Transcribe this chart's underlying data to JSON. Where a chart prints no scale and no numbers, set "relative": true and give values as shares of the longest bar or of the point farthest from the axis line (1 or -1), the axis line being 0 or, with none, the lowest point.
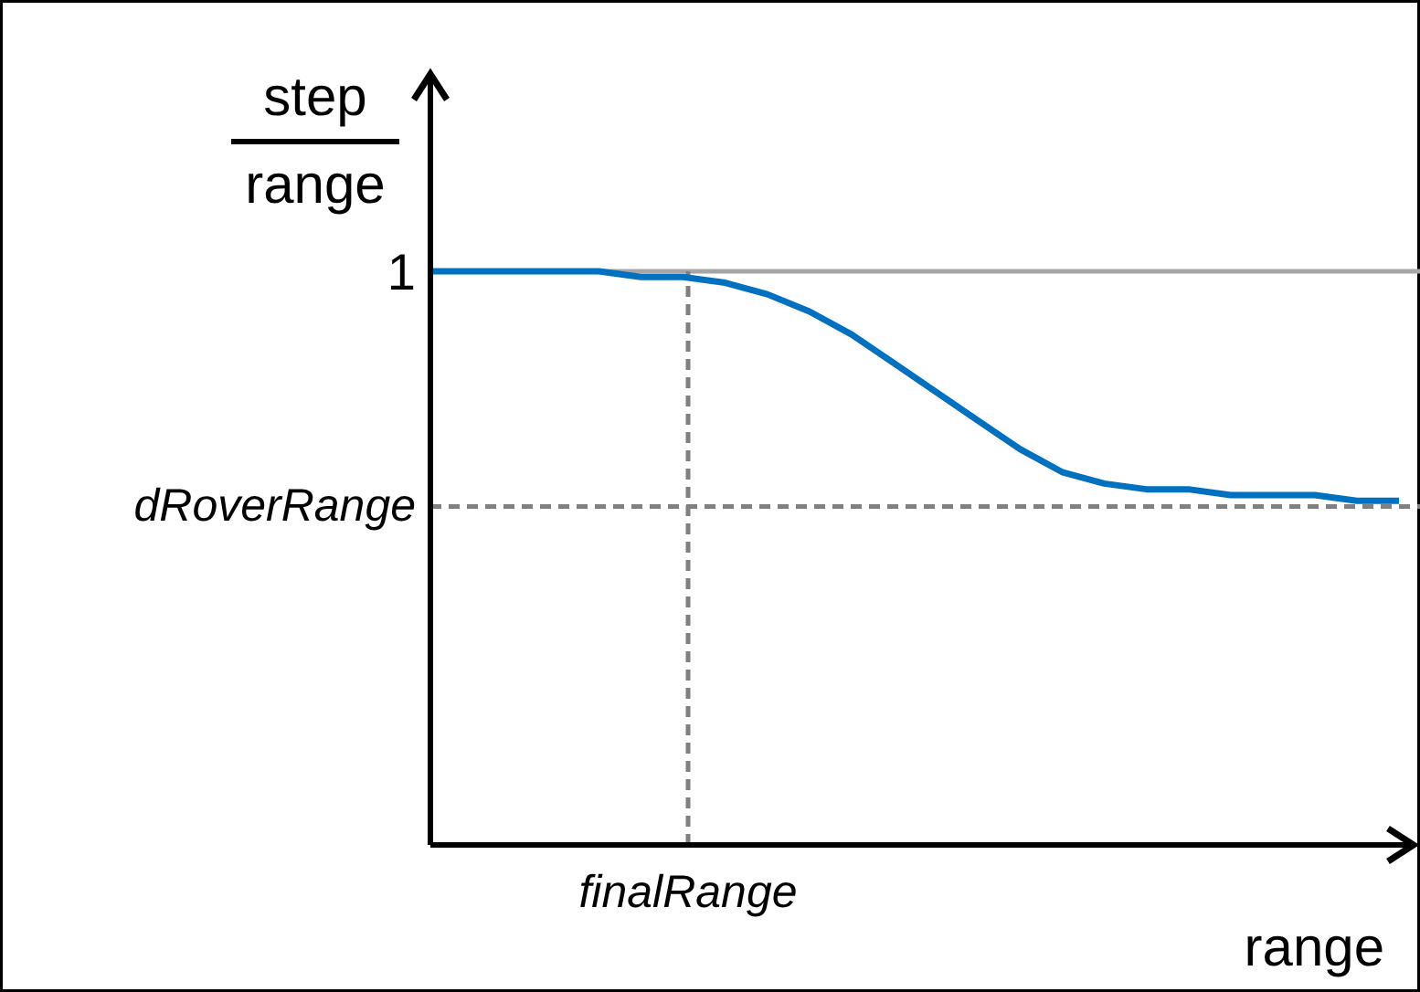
{
  "chart_data": {
    "type": "line",
    "relative": true,
    "ylabel": "step\nrange",
    "xlabel": "range",
    "categories": [
      null,
      null,
      null,
      null,
      null,
      null,
      null,
      null,
      null,
      null,
      null,
      null,
      null,
      null,
      null,
      null,
      null,
      null,
      null,
      null,
      null,
      null,
      null,
      null
    ],
    "series": [
      {
        "color": "#0070c0",
        "values": [
          1.0,
          1.0,
          1.0,
          1.0,
          1.0,
          0.99,
          0.99,
          0.98,
          0.96,
          0.93,
          0.89,
          0.84,
          0.79,
          0.74,
          0.69,
          0.65,
          0.63,
          0.62,
          0.62,
          0.61,
          0.61,
          0.61,
          0.6,
          0.6
        ]
      }
    ],
    "ref_lines": [
      {
        "axis": "y",
        "value": 1,
        "label": "1",
        "color": "#a6a6a6",
        "line_style": "solid"
      },
      {
        "axis": "y",
        "value": 0.59,
        "label": "dRoverRange",
        "color": "#808080",
        "line_style": "dashed"
      }
    ],
    "annotations": [
      "finalRange"
    ],
    "grid": false,
    "marker": "none",
    "line_style": "solid"
  }
}
